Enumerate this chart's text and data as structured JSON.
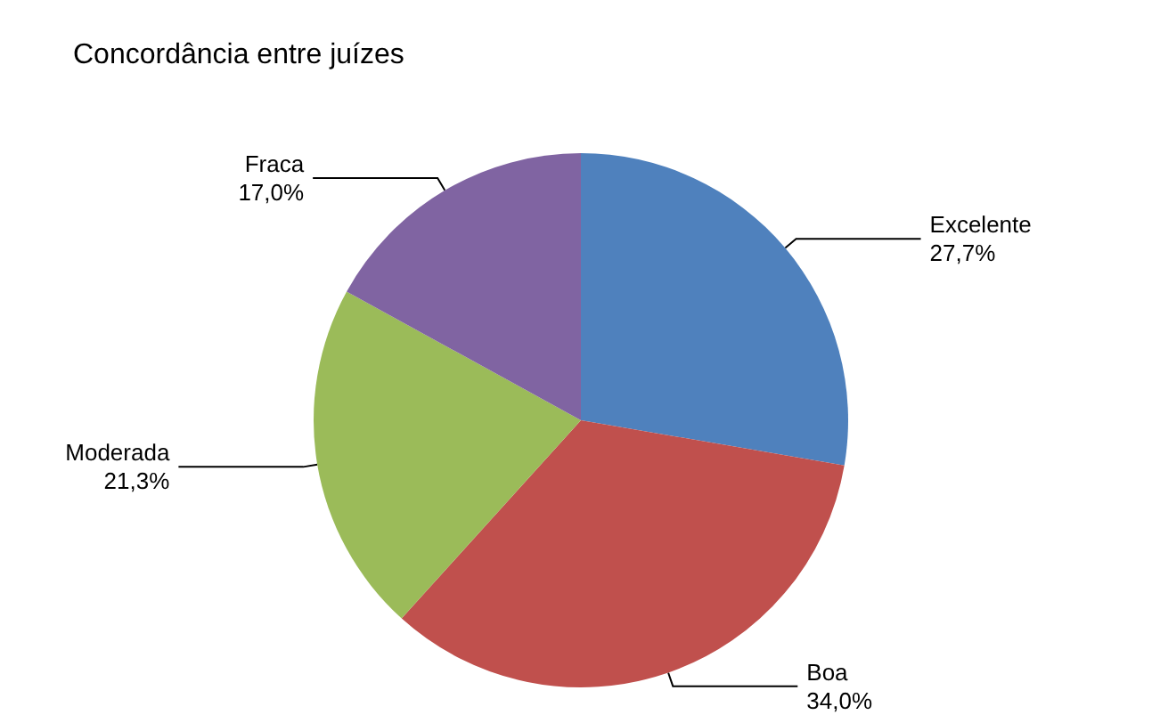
{
  "chart_data": {
    "type": "pie",
    "title": "Concordância entre juízes",
    "categories": [
      "Excelente",
      "Boa",
      "Moderada",
      "Fraca"
    ],
    "values": [
      27.7,
      34.0,
      21.3,
      17.0
    ],
    "value_labels": [
      "27,7%",
      "34,0%",
      "21,3%",
      "17,0%"
    ],
    "colors": [
      "#4f81bd",
      "#c0504d",
      "#9bbb59",
      "#8064a2"
    ],
    "legend": false
  }
}
